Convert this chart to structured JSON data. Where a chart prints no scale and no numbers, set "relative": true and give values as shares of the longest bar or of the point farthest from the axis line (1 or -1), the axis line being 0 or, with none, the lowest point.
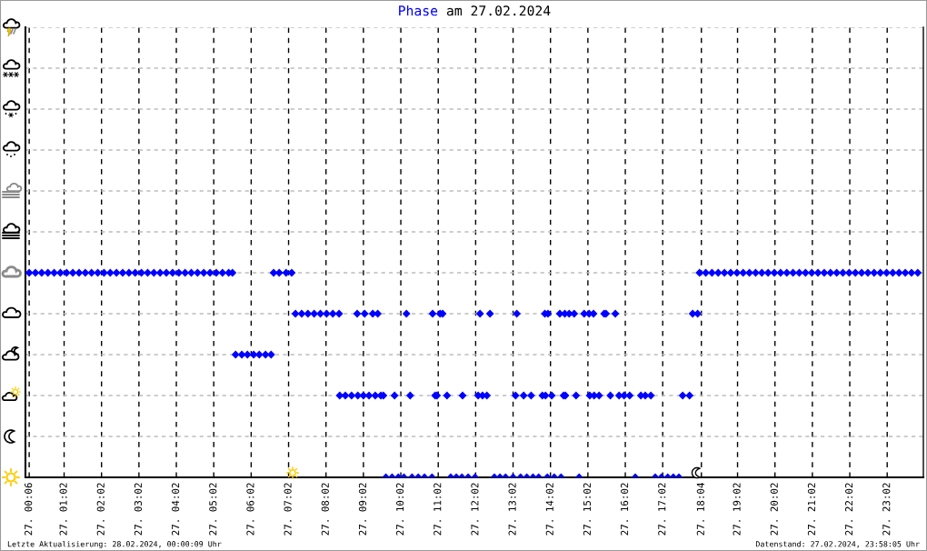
{
  "chart_data": {
    "type": "scatter",
    "title": "Phase am 27.02.2024",
    "relative": true,
    "x": [
      "2024-02-27T00:06",
      "2024-02-27T00:16",
      "2024-02-27T00:26",
      "2024-02-27T00:36",
      "2024-02-27T00:46",
      "2024-02-27T00:56",
      "2024-02-27T01:06",
      "2024-02-27T01:16",
      "2024-02-27T01:26",
      "2024-02-27T01:36",
      "2024-02-27T01:46",
      "2024-02-27T01:56",
      "2024-02-27T02:06",
      "2024-02-27T02:16",
      "2024-02-27T02:26",
      "2024-02-27T02:36",
      "2024-02-27T02:46",
      "2024-02-27T02:56",
      "2024-02-27T03:06",
      "2024-02-27T03:16",
      "2024-02-27T03:26",
      "2024-02-27T03:36",
      "2024-02-27T03:46",
      "2024-02-27T03:56",
      "2024-02-27T04:06",
      "2024-02-27T04:16",
      "2024-02-27T04:26",
      "2024-02-27T04:36",
      "2024-02-27T04:46",
      "2024-02-27T04:56",
      "2024-02-27T05:06",
      "2024-02-27T05:16",
      "2024-02-27T05:26",
      "2024-02-27T05:32",
      "2024-02-27T05:37",
      "2024-02-27T05:47",
      "2024-02-27T05:56",
      "2024-02-27T06:06",
      "2024-02-27T06:15",
      "2024-02-27T06:25",
      "2024-02-27T06:34",
      "2024-02-27T06:38",
      "2024-02-27T06:47",
      "2024-02-27T06:58",
      "2024-02-27T07:07",
      "2024-02-27T07:13",
      "2024-02-27T07:23",
      "2024-02-27T07:33",
      "2024-02-27T07:43",
      "2024-02-27T07:53",
      "2024-02-27T08:03",
      "2024-02-27T08:13",
      "2024-02-27T08:23",
      "2024-02-27T08:52",
      "2024-02-27T09:04",
      "2024-02-27T09:17",
      "2024-02-27T09:25",
      "2024-02-27T10:11",
      "2024-02-27T10:53",
      "2024-02-27T11:05",
      "2024-02-27T11:09",
      "2024-02-27T12:09",
      "2024-02-27T12:25",
      "2024-02-27T13:08",
      "2024-02-27T13:53",
      "2024-02-27T13:58",
      "2024-02-27T14:17",
      "2024-02-27T14:25",
      "2024-02-27T14:32",
      "2024-02-27T14:40",
      "2024-02-27T14:56",
      "2024-02-27T15:04",
      "2024-02-27T15:11",
      "2024-02-27T15:28",
      "2024-02-27T15:31",
      "2024-02-27T15:46",
      "2024-02-27T17:50",
      "2024-02-27T17:58",
      "2024-02-27T08:24",
      "2024-02-27T08:33",
      "2024-02-27T08:43",
      "2024-02-27T08:53",
      "2024-02-27T09:02",
      "2024-02-27T09:11",
      "2024-02-27T09:21",
      "2024-02-27T09:30",
      "2024-02-27T09:34",
      "2024-02-27T09:52",
      "2024-02-27T10:17",
      "2024-02-27T10:57",
      "2024-02-27T11:00",
      "2024-02-27T11:16",
      "2024-02-27T11:41",
      "2024-02-27T12:06",
      "2024-02-27T12:13",
      "2024-02-27T12:20",
      "2024-02-27T13:06",
      "2024-02-27T13:19",
      "2024-02-27T13:31",
      "2024-02-27T13:49",
      "2024-02-27T13:54",
      "2024-02-27T14:04",
      "2024-02-27T14:23",
      "2024-02-27T14:26",
      "2024-02-27T14:43",
      "2024-02-27T15:05",
      "2024-02-27T15:12",
      "2024-02-27T15:20",
      "2024-02-27T15:38",
      "2024-02-27T15:52",
      "2024-02-27T16:00",
      "2024-02-27T16:09",
      "2024-02-27T16:27",
      "2024-02-27T16:34",
      "2024-02-27T16:43",
      "2024-02-27T17:34",
      "2024-02-27T17:45",
      "2024-02-27T09:38",
      "2024-02-27T09:48",
      "2024-02-27T09:58",
      "2024-02-27T10:07",
      "2024-02-27T10:20",
      "2024-02-27T10:30",
      "2024-02-27T10:40",
      "2024-02-27T10:52",
      "2024-02-27T11:22",
      "2024-02-27T11:31",
      "2024-02-27T11:40",
      "2024-02-27T11:50",
      "2024-02-27T12:01",
      "2024-02-27T12:32",
      "2024-02-27T12:41",
      "2024-02-27T12:50",
      "2024-02-27T13:02",
      "2024-02-27T13:14",
      "2024-02-27T13:24",
      "2024-02-27T13:34",
      "2024-02-27T13:43",
      "2024-02-27T13:57",
      "2024-02-27T14:08",
      "2024-02-27T14:19",
      "2024-02-27T14:48",
      "2024-02-27T16:18",
      "2024-02-27T16:50",
      "2024-02-27T17:00",
      "2024-02-27T17:10",
      "2024-02-27T17:19",
      "2024-02-27T17:28",
      "2024-02-27T18:01",
      "2024-02-27T18:11",
      "2024-02-27T18:21",
      "2024-02-27T18:31",
      "2024-02-27T18:41",
      "2024-02-27T18:51",
      "2024-02-27T19:01",
      "2024-02-27T19:11",
      "2024-02-27T19:21",
      "2024-02-27T19:31",
      "2024-02-27T19:41",
      "2024-02-27T19:51",
      "2024-02-27T20:01",
      "2024-02-27T20:11",
      "2024-02-27T20:21",
      "2024-02-27T20:31",
      "2024-02-27T20:41",
      "2024-02-27T20:51",
      "2024-02-27T21:01",
      "2024-02-27T21:11",
      "2024-02-27T21:21",
      "2024-02-27T21:31",
      "2024-02-27T21:41",
      "2024-02-27T21:51",
      "2024-02-27T22:01",
      "2024-02-27T22:11",
      "2024-02-27T22:21",
      "2024-02-27T22:31",
      "2024-02-27T22:41",
      "2024-02-27T22:51",
      "2024-02-27T23:01",
      "2024-02-27T23:11",
      "2024-02-27T23:21",
      "2024-02-27T23:31",
      "2024-02-27T23:41",
      "2024-02-27T23:51"
    ],
    "values": [
      1,
      1,
      1,
      1,
      1,
      1,
      1,
      1,
      1,
      1,
      1,
      1,
      1,
      1,
      1,
      1,
      1,
      1,
      1,
      1,
      1,
      1,
      1,
      1,
      1,
      1,
      1,
      1,
      1,
      1,
      1,
      1,
      1,
      1,
      0.6,
      0.6,
      0.6,
      0.6,
      0.6,
      0.6,
      0.6,
      1,
      1,
      1,
      1,
      0.8,
      0.8,
      0.8,
      0.8,
      0.8,
      0.8,
      0.8,
      0.8,
      0.8,
      0.8,
      0.8,
      0.8,
      0.8,
      0.8,
      0.8,
      0.8,
      0.8,
      0.8,
      0.8,
      0.8,
      0.8,
      0.8,
      0.8,
      0.8,
      0.8,
      0.8,
      0.8,
      0.8,
      0.8,
      0.8,
      0.8,
      0.8,
      0.8,
      0.4,
      0.4,
      0.4,
      0.4,
      0.4,
      0.4,
      0.4,
      0.4,
      0.4,
      0.4,
      0.4,
      0.4,
      0.4,
      0.4,
      0.4,
      0.4,
      0.4,
      0.4,
      0.4,
      0.4,
      0.4,
      0.4,
      0.4,
      0.4,
      0.4,
      0.4,
      0.4,
      0.4,
      0.4,
      0.4,
      0.4,
      0.4,
      0.4,
      0.4,
      0.4,
      0.4,
      0.4,
      0.4,
      0.4,
      0,
      0,
      0,
      0,
      0,
      0,
      0,
      0,
      0,
      0,
      0,
      0,
      0,
      0,
      0,
      0,
      0,
      0,
      0,
      0,
      0,
      0,
      0,
      0,
      0,
      0,
      0,
      0,
      0,
      0,
      0,
      1,
      1,
      1,
      1,
      1,
      1,
      1,
      1,
      1,
      1,
      1,
      1,
      1,
      1,
      1,
      1,
      1,
      1,
      1,
      1,
      1,
      1,
      1,
      1,
      1,
      1,
      1,
      1,
      1,
      1,
      1,
      1,
      1,
      1,
      1,
      1
    ],
    "color": "#0000ff",
    "marker": "diamond",
    "xlim": [
      "2024-02-27T00:00",
      "2024-02-28T00:00"
    ],
    "xticks": [
      {
        "value": "2024-02-27T00:06",
        "label": "27. 00:06"
      },
      {
        "value": "2024-02-27T01:02",
        "label": "27. 01:02"
      },
      {
        "value": "2024-02-27T02:02",
        "label": "27. 02:02"
      },
      {
        "value": "2024-02-27T03:02",
        "label": "27. 03:02"
      },
      {
        "value": "2024-02-27T04:02",
        "label": "27. 04:02"
      },
      {
        "value": "2024-02-27T05:02",
        "label": "27. 05:02"
      },
      {
        "value": "2024-02-27T06:02",
        "label": "27. 06:02"
      },
      {
        "value": "2024-02-27T07:02",
        "label": "27. 07:02"
      },
      {
        "value": "2024-02-27T08:02",
        "label": "27. 08:02"
      },
      {
        "value": "2024-02-27T09:02",
        "label": "27. 09:02"
      },
      {
        "value": "2024-02-27T10:02",
        "label": "27. 10:02"
      },
      {
        "value": "2024-02-27T11:02",
        "label": "27. 11:02"
      },
      {
        "value": "2024-02-27T12:02",
        "label": "27. 12:02"
      },
      {
        "value": "2024-02-27T13:02",
        "label": "27. 13:02"
      },
      {
        "value": "2024-02-27T14:02",
        "label": "27. 14:02"
      },
      {
        "value": "2024-02-27T15:02",
        "label": "27. 15:02"
      },
      {
        "value": "2024-02-27T16:02",
        "label": "27. 16:02"
      },
      {
        "value": "2024-02-27T17:02",
        "label": "27. 17:02"
      },
      {
        "value": "2024-02-27T18:04",
        "label": "27. 18:04"
      },
      {
        "value": "2024-02-27T19:02",
        "label": "27. 19:02"
      },
      {
        "value": "2024-02-27T20:02",
        "label": "27. 20:02"
      },
      {
        "value": "2024-02-27T21:02",
        "label": "27. 21:02"
      },
      {
        "value": "2024-02-27T22:02",
        "label": "27. 22:02"
      },
      {
        "value": "2024-02-27T23:02",
        "label": "27. 23:02"
      }
    ],
    "grid": true,
    "annotations": [
      "Letzte Aktualisierung: 28.02.2024, 00:00:09 Uhr",
      "Datenstand: 27.02.2024, 23:58:05 Uhr"
    ]
  }
}
